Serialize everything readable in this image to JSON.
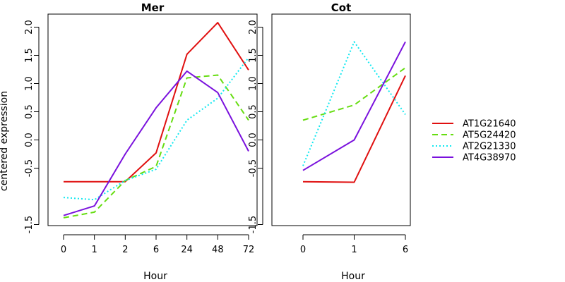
{
  "chart_data": [
    {
      "type": "line",
      "title": "Mer",
      "xlabel": "Hour",
      "ylabel": "centered expression",
      "categories": [
        "0",
        "1",
        "2",
        "6",
        "24",
        "48",
        "72"
      ],
      "yticks": [
        "-1.5",
        "-0.5",
        "0.0",
        "0.5",
        "1.0",
        "1.5",
        "2.0"
      ],
      "ylim": [
        -1.5,
        2.2
      ],
      "series": [
        {
          "name": "AT1G21640",
          "values": [
            -0.74,
            -0.74,
            -0.74,
            -0.23,
            1.52,
            2.08,
            1.24
          ]
        },
        {
          "name": "AT5G24420",
          "values": [
            -1.38,
            -1.28,
            -0.72,
            -0.47,
            1.1,
            1.15,
            0.35
          ]
        },
        {
          "name": "AT2G21330",
          "values": [
            -1.02,
            -1.06,
            -0.72,
            -0.52,
            0.35,
            0.74,
            1.46
          ]
        },
        {
          "name": "AT4G38970",
          "values": [
            -1.34,
            -1.17,
            -0.25,
            0.57,
            1.22,
            0.84,
            -0.2
          ]
        }
      ]
    },
    {
      "type": "line",
      "title": "Cot",
      "xlabel": "Hour",
      "ylabel": "",
      "categories": [
        "0",
        "1",
        "6"
      ],
      "yticks": [
        "-1.5",
        "-0.5",
        "0.0",
        "0.5",
        "1.0",
        "1.5",
        "2.0"
      ],
      "ylim": [
        -1.5,
        2.2
      ],
      "series": [
        {
          "name": "AT1G21640",
          "values": [
            -0.74,
            -0.75,
            1.14
          ]
        },
        {
          "name": "AT5G24420",
          "values": [
            0.35,
            0.62,
            1.28
          ]
        },
        {
          "name": "AT2G21330",
          "values": [
            -0.46,
            1.74,
            0.45
          ]
        },
        {
          "name": "AT4G38970",
          "values": [
            -0.54,
            0.0,
            1.74
          ]
        }
      ]
    }
  ],
  "legend": {
    "position": "right",
    "items": [
      {
        "label": "AT1G21640",
        "color": "#e01010",
        "dash": "solid"
      },
      {
        "label": "AT5G24420",
        "color": "#66dd11",
        "dash": "dashed"
      },
      {
        "label": "AT2G21330",
        "color": "#11e8f0",
        "dash": "dotted"
      },
      {
        "label": "AT4G38970",
        "color": "#7a11dd",
        "dash": "solid"
      }
    ]
  }
}
